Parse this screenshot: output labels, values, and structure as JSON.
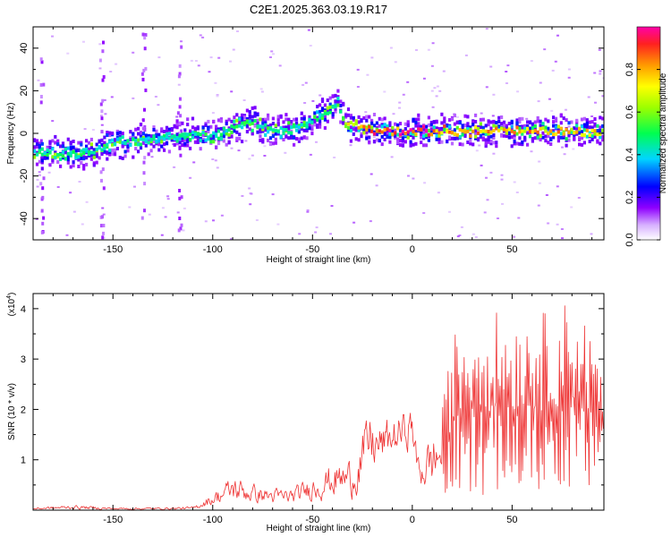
{
  "title": "C2E1.2025.363.03.19.R17",
  "chart_data": [
    {
      "type": "heatmap",
      "xlabel": "Height of straight line (km)",
      "ylabel": "Frequency (Hz)",
      "xlim": [
        -190,
        96
      ],
      "ylim": [
        -50,
        50
      ],
      "xticks": [
        -150,
        -100,
        -50,
        0,
        50
      ],
      "xtick_labels": [
        "-150",
        "-100",
        "-50",
        "0",
        "50"
      ],
      "yticks": [
        -40,
        -20,
        0,
        20,
        40
      ],
      "ytick_labels": [
        "-40",
        "-20",
        "0",
        "20",
        "40"
      ],
      "ridge": {
        "x": [
          -190,
          -175,
          -165,
          -160,
          -150,
          -140,
          -130,
          -120,
          -110,
          -100,
          -90,
          -80,
          -70,
          -60,
          -50,
          -42,
          -38,
          -34,
          -30,
          -20,
          -10,
          0,
          20,
          40,
          60,
          80,
          96
        ],
        "y": [
          -9,
          -9,
          -9,
          -8,
          -4,
          -4,
          -3,
          -1,
          -1,
          -1,
          3,
          5,
          1,
          2,
          6,
          11,
          15,
          5,
          4,
          1,
          1,
          1,
          1,
          1,
          1,
          1,
          1
        ],
        "amplitude": [
          0.45,
          0.45,
          0.5,
          0.45,
          0.45,
          0.45,
          0.45,
          0.45,
          0.45,
          0.45,
          0.5,
          0.5,
          0.45,
          0.45,
          0.5,
          0.45,
          0.4,
          0.7,
          0.75,
          0.9,
          0.95,
          0.95,
          0.85,
          0.8,
          0.8,
          0.8,
          0.7
        ]
      },
      "colorbar": {
        "label": "Normalized spectral amplitude",
        "ticks": [
          0.0,
          0.2,
          0.4,
          0.6,
          0.8
        ],
        "tick_labels": [
          "0.0",
          "0.2",
          "0.4",
          "0.6",
          "0.8"
        ],
        "range": [
          0,
          1
        ]
      }
    },
    {
      "type": "line",
      "xlabel": "Height of straight line (km)",
      "ylabel": "SNR (10 * v/v)",
      "scale_label": "(x10",
      "scale_exp": "4",
      "scale_close": ")",
      "xlim": [
        -190,
        96
      ],
      "ylim": [
        0,
        4.3
      ],
      "xticks": [
        -150,
        -100,
        -50,
        0,
        50
      ],
      "xtick_labels": [
        "-150",
        "-100",
        "-50",
        "0",
        "50"
      ],
      "yticks": [
        1,
        2,
        3,
        4
      ],
      "ytick_labels": [
        "1",
        "2",
        "3",
        "4"
      ],
      "color": "#ee3333",
      "series_envelope": {
        "x": [
          -190,
          -170,
          -150,
          -130,
          -110,
          -100,
          -90,
          -80,
          -70,
          -60,
          -50,
          -40,
          -30,
          -25,
          -22,
          -18,
          -12,
          -5,
          0,
          2,
          5,
          10,
          15,
          20,
          30,
          40,
          50,
          60,
          70,
          80,
          90,
          96
        ],
        "low": [
          0.0,
          0.0,
          0.0,
          0.0,
          0.0,
          0.05,
          0.05,
          0.05,
          0.05,
          0.05,
          0.1,
          0.1,
          0.1,
          0.2,
          0.5,
          0.6,
          0.8,
          1.0,
          1.1,
          0.3,
          0.2,
          0.2,
          0.3,
          0.2,
          0.3,
          0.3,
          0.4,
          0.3,
          0.4,
          0.4,
          0.3,
          1.5
        ],
        "high": [
          0.06,
          0.12,
          0.06,
          0.06,
          0.08,
          0.4,
          0.8,
          0.6,
          0.5,
          0.5,
          0.8,
          1.1,
          1.2,
          1.8,
          2.3,
          1.9,
          2.0,
          2.1,
          2.25,
          1.3,
          1.4,
          1.8,
          2.0,
          3.5,
          3.9,
          4.0,
          3.8,
          4.0,
          3.9,
          4.3,
          3.6,
          2.3
        ]
      }
    }
  ]
}
